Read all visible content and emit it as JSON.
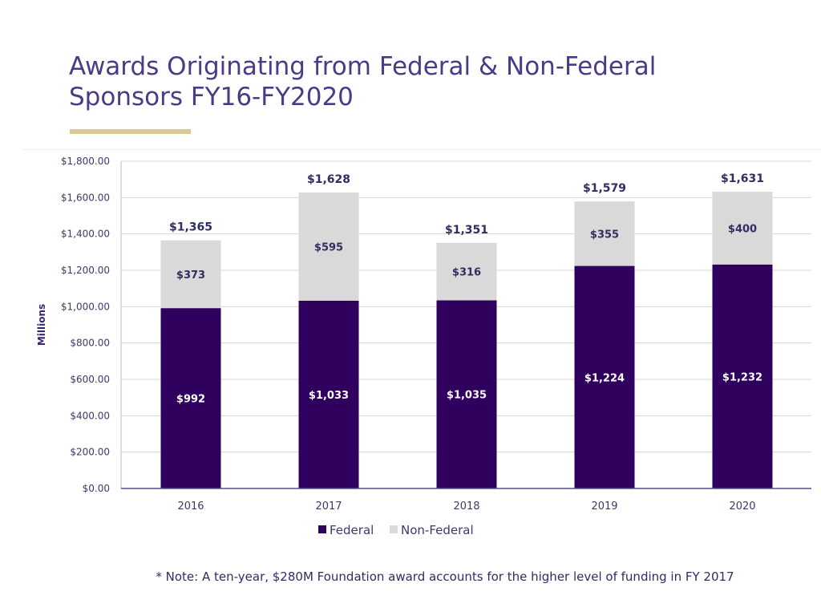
{
  "slide": {
    "title_line1": "Awards Originating from Federal & Non-Federal",
    "title_line2": "Sponsors FY16-FY2020",
    "footnote": "* Note: A ten-year, $280M Foundation award accounts for the higher level of funding in FY 2017"
  },
  "colors": {
    "federal": "#30005f",
    "non_federal": "#d9d9d9",
    "title": "#4b3a87",
    "accent_rule": "#d9c995"
  },
  "chart_data": {
    "type": "bar",
    "stacked": true,
    "categories": [
      "2016",
      "2017",
      "2018",
      "2019",
      "2020"
    ],
    "series": [
      {
        "name": "Federal",
        "values": [
          992,
          1033,
          1035,
          1224,
          1232
        ],
        "labels": [
          "$992",
          "$1,033",
          "$1,035",
          "$1,224",
          "$1,232"
        ]
      },
      {
        "name": "Non-Federal",
        "values": [
          373,
          595,
          316,
          355,
          400
        ],
        "labels": [
          "$373",
          "$595",
          "$316",
          "$355",
          "$400"
        ]
      }
    ],
    "totals": [
      1365,
      1628,
      1351,
      1579,
      1631
    ],
    "total_labels": [
      "$1,365",
      "$1,628",
      "$1,351",
      "$1,579",
      "$1,631"
    ],
    "ylabel": "Millions",
    "xlabel": "",
    "ylim": [
      0,
      1800
    ],
    "yticks": [
      0,
      200,
      400,
      600,
      800,
      1000,
      1200,
      1400,
      1600,
      1800
    ],
    "ytick_labels": [
      "$0.00",
      "$200.00",
      "$400.00",
      "$600.00",
      "$800.00",
      "$1,000.00",
      "$1,200.00",
      "$1,400.00",
      "$1,600.00",
      "$1,800.00"
    ],
    "grid": true,
    "legend_position": "bottom-center"
  }
}
